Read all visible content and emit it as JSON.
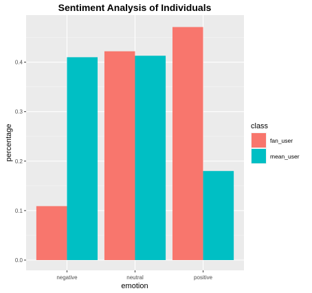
{
  "chart_data": {
    "type": "bar",
    "title": "Sentiment Analysis of Individuals",
    "xlabel": "emotion",
    "ylabel": "percentage",
    "categories": [
      "negative",
      "neutral",
      "positive"
    ],
    "series": [
      {
        "name": "fan_user",
        "color": "#F8766D",
        "values": [
          0.109,
          0.422,
          0.471
        ]
      },
      {
        "name": "mean_user",
        "color": "#00BFC4",
        "values": [
          0.41,
          0.413,
          0.18
        ]
      }
    ],
    "ylim": [
      0,
      0.5
    ],
    "yticks": [
      0.0,
      0.1,
      0.2,
      0.3,
      0.4
    ],
    "ytick_labels": [
      "0.0",
      "0.1",
      "0.2",
      "0.3",
      "0.4"
    ],
    "grid": true,
    "legend": {
      "title": "class",
      "position": "right"
    }
  }
}
